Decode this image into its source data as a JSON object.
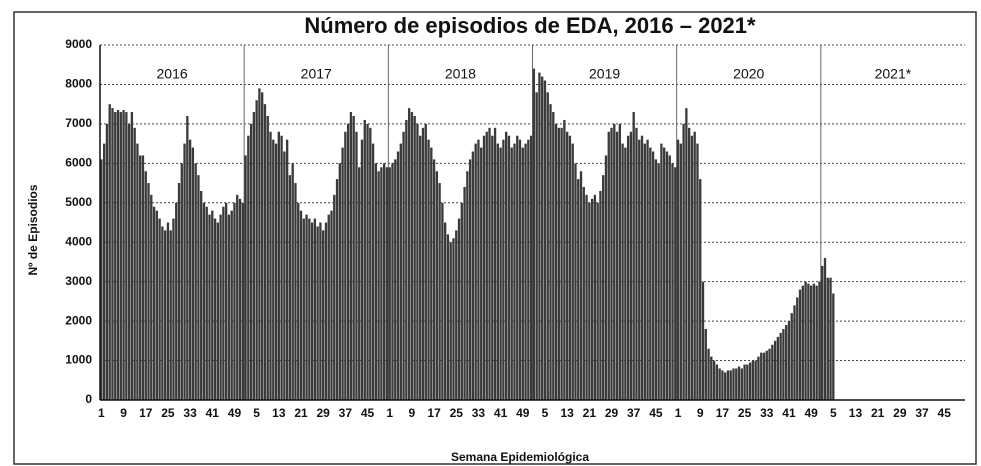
{
  "chart_data": {
    "type": "bar",
    "title": "Número de episodios de EDA, 2016 – 2021*",
    "xlabel": "Semana Epidemiológica",
    "ylabel": "Nº de Episodios",
    "years": [
      "2016",
      "2017",
      "2018",
      "2019",
      "2020",
      "2021*"
    ],
    "color": "#3a3a3a",
    "ylim": [
      0,
      9000
    ],
    "yticks": [
      0,
      1000,
      2000,
      3000,
      4000,
      5000,
      6000,
      7000,
      8000,
      9000
    ],
    "grid": true,
    "categories": [
      "1",
      null,
      null,
      null,
      null,
      null,
      null,
      null,
      "9",
      null,
      null,
      null,
      null,
      null,
      null,
      null,
      "17",
      null,
      null,
      null,
      null,
      null,
      null,
      null,
      "25",
      null,
      null,
      null,
      null,
      null,
      null,
      null,
      "33",
      null,
      null,
      null,
      null,
      null,
      null,
      null,
      "41",
      null,
      null,
      null,
      null,
      null,
      null,
      null,
      "49",
      null,
      null,
      null,
      null,
      null,
      null,
      null,
      "5",
      null,
      null,
      null,
      null,
      null,
      null,
      null,
      "13",
      null,
      null,
      null,
      null,
      null,
      null,
      null,
      "21",
      null,
      null,
      null,
      null,
      null,
      null,
      null,
      "29",
      null,
      null,
      null,
      null,
      null,
      null,
      null,
      "37",
      null,
      null,
      null,
      null,
      null,
      null,
      null,
      "45",
      null,
      null,
      null,
      null,
      null,
      null,
      null,
      "1",
      null,
      null,
      null,
      null,
      null,
      null,
      null,
      "9",
      null,
      null,
      null,
      null,
      null,
      null,
      null,
      "17",
      null,
      null,
      null,
      null,
      null,
      null,
      null,
      "25",
      null,
      null,
      null,
      null,
      null,
      null,
      null,
      "33",
      null,
      null,
      null,
      null,
      null,
      null,
      null,
      "41",
      null,
      null,
      null,
      null,
      null,
      null,
      null,
      "49",
      null,
      null,
      null,
      null,
      null,
      null,
      null,
      "5",
      null,
      null,
      null,
      null,
      null,
      null,
      null,
      "13",
      null,
      null,
      null,
      null,
      null,
      null,
      null,
      "21",
      null,
      null,
      null,
      null,
      null,
      null,
      null,
      "29",
      null,
      null,
      null,
      null,
      null,
      null,
      null,
      "37",
      null,
      null,
      null,
      null,
      null,
      null,
      null,
      "45",
      null,
      null,
      null,
      null,
      null,
      null,
      null,
      "1",
      null,
      null,
      null,
      null,
      null,
      null,
      null,
      "9",
      null,
      null,
      null,
      null,
      null,
      null,
      null,
      "17",
      null,
      null,
      null,
      null,
      null,
      null,
      null,
      "25",
      null,
      null,
      null,
      null,
      null,
      null,
      null,
      "33",
      null,
      null,
      null,
      null,
      null,
      null,
      null,
      "41",
      null,
      null,
      null,
      null,
      null,
      null,
      null,
      "49",
      null,
      null,
      null,
      null,
      null,
      null,
      null,
      "5",
      null,
      null,
      null,
      null,
      null,
      null,
      null,
      "13",
      null,
      null,
      null,
      null,
      null,
      null,
      null,
      "21",
      null,
      null,
      null,
      null,
      null,
      null,
      null,
      "29",
      null,
      null,
      null,
      null,
      null,
      null,
      null,
      "37",
      null,
      null,
      null,
      null,
      null,
      null,
      null,
      "45",
      null,
      null,
      null,
      null,
      null,
      null,
      null
    ],
    "values": [
      6100,
      6500,
      7000,
      7500,
      7400,
      7300,
      7350,
      7300,
      7350,
      7300,
      7000,
      7300,
      6900,
      6500,
      6200,
      6200,
      5800,
      5500,
      5200,
      4900,
      4800,
      4600,
      4400,
      4300,
      4500,
      4300,
      4600,
      5000,
      5500,
      6000,
      6500,
      7200,
      6600,
      6400,
      6000,
      5700,
      5300,
      5000,
      4900,
      4700,
      4800,
      4600,
      4500,
      4700,
      4900,
      5000,
      4700,
      4800,
      5000,
      5200,
      5100,
      5000,
      6200,
      6700,
      7000,
      7300,
      7600,
      7900,
      7800,
      7500,
      7200,
      6800,
      6600,
      6500,
      6800,
      6700,
      6300,
      6600,
      5700,
      6000,
      5500,
      5000,
      4800,
      4600,
      4700,
      4600,
      4500,
      4600,
      4400,
      4500,
      4300,
      4500,
      4700,
      4800,
      5200,
      5600,
      6000,
      6400,
      6800,
      7000,
      7300,
      7200,
      6800,
      5900,
      6600,
      7100,
      7000,
      6900,
      6500,
      6000,
      5800,
      5900,
      6000,
      5900,
      5900,
      6000,
      6100,
      6300,
      6500,
      6800,
      7100,
      7400,
      7300,
      7200,
      7000,
      6700,
      6900,
      7000,
      6600,
      6400,
      6100,
      5800,
      5500,
      5000,
      4500,
      4200,
      4000,
      4100,
      4300,
      4600,
      5000,
      5400,
      5800,
      6100,
      6300,
      6500,
      6600,
      6400,
      6700,
      6800,
      6900,
      6700,
      6900,
      6500,
      6400,
      6600,
      6800,
      6700,
      6400,
      6500,
      6700,
      6600,
      6400,
      6500,
      6600,
      6700,
      8400,
      7800,
      8300,
      8200,
      8100,
      7800,
      7500,
      7300,
      7000,
      6900,
      6900,
      7100,
      6800,
      6700,
      6500,
      6000,
      5600,
      5800,
      5400,
      5200,
      5000,
      5100,
      5200,
      5000,
      5300,
      5700,
      6200,
      6800,
      6900,
      7000,
      6800,
      7000,
      6500,
      6400,
      6700,
      6800,
      7300,
      6900,
      6600,
      6700,
      6500,
      6600,
      6400,
      6300,
      6100,
      6000,
      6500,
      6400,
      6300,
      6200,
      6000,
      5900,
      6600,
      6500,
      7000,
      7400,
      6900,
      6700,
      6800,
      6500,
      5600,
      3000,
      1800,
      1300,
      1100,
      1000,
      900,
      800,
      750,
      700,
      750,
      750,
      800,
      800,
      850,
      800,
      900,
      900,
      950,
      1000,
      1000,
      1100,
      1200,
      1200,
      1250,
      1300,
      1400,
      1500,
      1600,
      1700,
      1800,
      1900,
      2000,
      2200,
      2400,
      2600,
      2800,
      2900,
      3000,
      2950,
      2900,
      2950,
      2900,
      3000,
      3400,
      3600,
      3100,
      3100,
      2700,
      null,
      null,
      null,
      null,
      null,
      null,
      null,
      null,
      null,
      null,
      null,
      null,
      null,
      null,
      null,
      null,
      null,
      null,
      null,
      null,
      null,
      null,
      null,
      null,
      null,
      null,
      null,
      null,
      null,
      null,
      null,
      null,
      null,
      null,
      null,
      null,
      null,
      null,
      null,
      null,
      null,
      null,
      null,
      null,
      null,
      null,
      null
    ]
  }
}
